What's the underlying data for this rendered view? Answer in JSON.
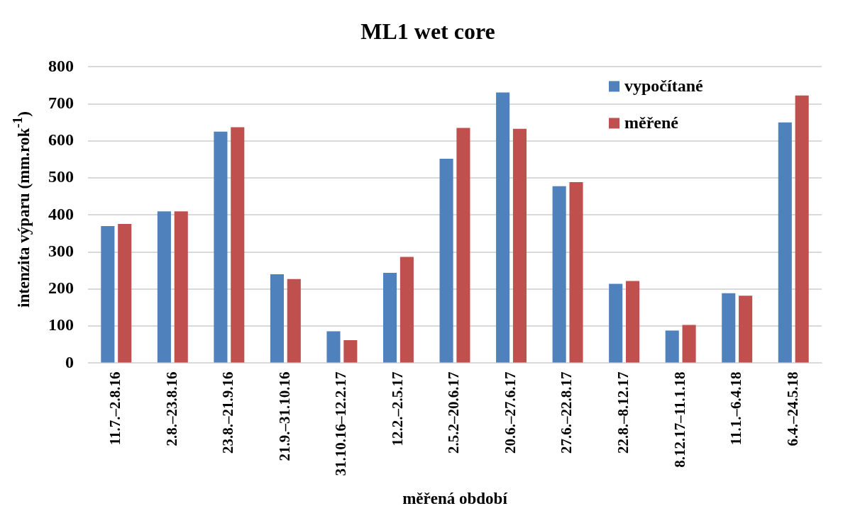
{
  "chart_data": {
    "type": "bar",
    "title": "ML1 wet core",
    "xlabel": "měřená období",
    "ylabel": "intenzita výparu (mm.rok$^{-1}$)",
    "categories": [
      "11.7.–2.8.16",
      "2.8.–23.8.16",
      "23.8.–21.9.16",
      "21.9.–31.10.16",
      "31.10.16–12.2.17",
      "12.2.–2.5.17",
      "2.5.2–20.6.17",
      "20.6.–27.6.17",
      "27.6.–22.8.17",
      "22.8.–8.12.17",
      "8.12.17–11.1.18",
      "11.1.–6.4.18",
      "6.4.–24.5.18"
    ],
    "series": [
      {
        "name": "vypočítané",
        "color": "#4f81bd",
        "values": [
          370,
          410,
          625,
          240,
          86,
          244,
          552,
          731,
          478,
          214,
          88,
          189,
          650
        ]
      },
      {
        "name": "měřené",
        "color": "#c0504d",
        "values": [
          376,
          410,
          637,
          227,
          62,
          287,
          635,
          633,
          489,
          222,
          103,
          182,
          723
        ]
      }
    ],
    "ylim": [
      0,
      800
    ],
    "yticks": [
      0,
      100,
      200,
      300,
      400,
      500,
      600,
      700,
      800
    ],
    "grid": "y",
    "legend": "top right"
  }
}
